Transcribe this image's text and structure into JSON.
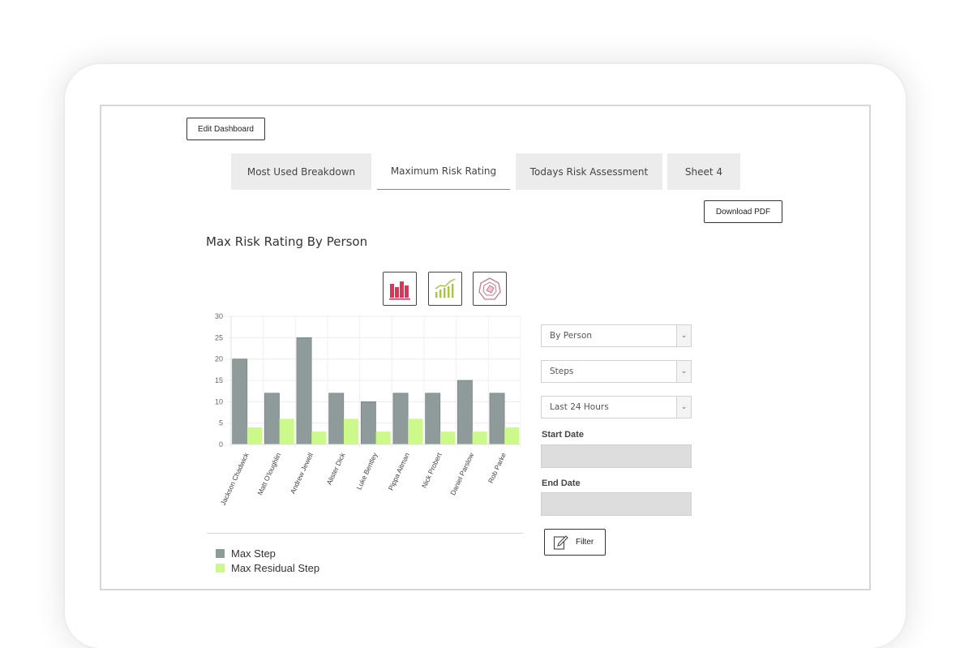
{
  "toolbar": {
    "edit_label": "Edit Dashboard",
    "download_label": "Download PDF"
  },
  "tabs": [
    {
      "label": "Most Used Breakdown",
      "active": false
    },
    {
      "label": "Maximum Risk Rating",
      "active": true
    },
    {
      "label": "Todays Risk Assessment",
      "active": false
    },
    {
      "label": "Sheet 4",
      "active": false
    }
  ],
  "page_title": "Max Risk Rating By Person",
  "chart_type_buttons": [
    {
      "icon": "bar-chart-icon",
      "color": "#e0325a"
    },
    {
      "icon": "line-bar-chart-icon",
      "color": "#a8c63a"
    },
    {
      "icon": "radar-chart-icon",
      "color": "#c47a8a"
    }
  ],
  "filters": {
    "group_by": "By Person",
    "metric": "Steps",
    "period": "Last 24 Hours",
    "start_date_label": "Start Date",
    "start_date_value": "",
    "end_date_label": "End Date",
    "end_date_value": "",
    "filter_label": "Filter"
  },
  "colors": {
    "max_step": "#8f9a9b",
    "max_residual_step": "#ccfa8a"
  },
  "chart_data": {
    "type": "bar",
    "categories": [
      "Jackson Chadwick",
      "Matt O'loughlin",
      "Andrew Jewell",
      "Alister Dick",
      "Luke Bentley",
      "Pippa Aitman",
      "Nick Probert",
      "Daniel Parslow",
      "Rob Parke"
    ],
    "series": [
      {
        "name": "Max Step",
        "values": [
          20,
          12,
          25,
          12,
          10,
          12,
          12,
          15,
          12
        ]
      },
      {
        "name": "Max Residual Step",
        "values": [
          4,
          6,
          3,
          6,
          3,
          6,
          3,
          3,
          4
        ]
      }
    ],
    "yticks": [
      "0",
      "5",
      "10",
      "15",
      "20",
      "25",
      "30"
    ],
    "ylim": [
      0,
      30
    ],
    "grid": true,
    "legend": "bottom-left"
  }
}
